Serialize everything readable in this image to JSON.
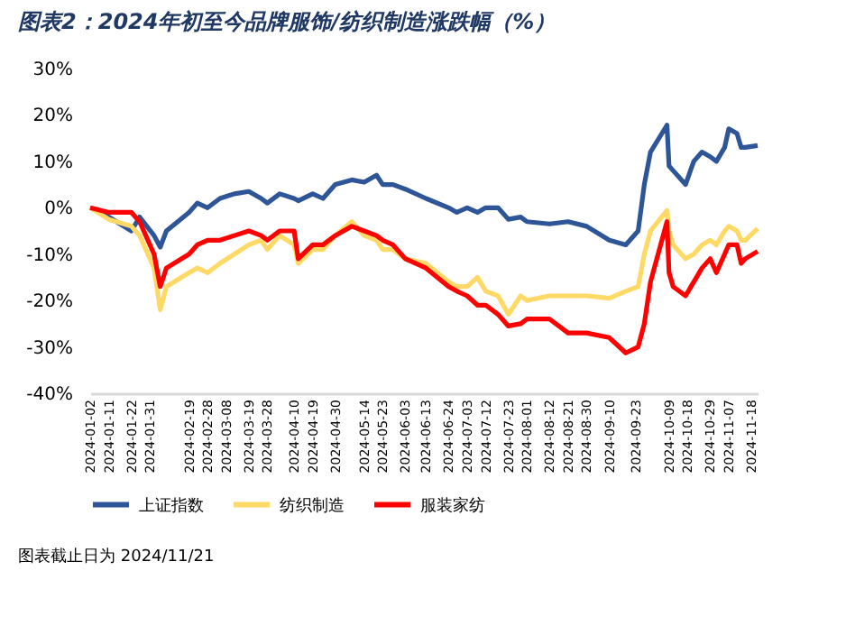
{
  "chart_data": {
    "type": "line",
    "title": "图表2：2024年初至今品牌服饰/纺织制造涨跌幅（%）",
    "x": [
      "2024-01-02",
      "2024-01-11",
      "2024-01-22",
      "2024-01-26",
      "2024-02-02",
      "2024-02-05",
      "2024-02-08",
      "2024-02-19",
      "2024-02-23",
      "2024-02-28",
      "2024-03-05",
      "2024-03-12",
      "2024-03-19",
      "2024-03-25",
      "2024-03-28",
      "2024-04-03",
      "2024-04-10",
      "2024-04-12",
      "2024-04-19",
      "2024-04-24",
      "2024-04-30",
      "2024-05-08",
      "2024-05-14",
      "2024-05-20",
      "2024-05-23",
      "2024-05-28",
      "2024-06-03",
      "2024-06-13",
      "2024-06-24",
      "2024-06-28",
      "2024-07-03",
      "2024-07-08",
      "2024-07-12",
      "2024-07-18",
      "2024-07-23",
      "2024-07-29",
      "2024-08-01",
      "2024-08-12",
      "2024-08-21",
      "2024-08-30",
      "2024-09-10",
      "2024-09-18",
      "2024-09-24",
      "2024-09-27",
      "2024-09-30",
      "2024-10-08",
      "2024-10-09",
      "2024-10-11",
      "2024-10-17",
      "2024-10-21",
      "2024-10-25",
      "2024-10-29",
      "2024-11-01",
      "2024-11-05",
      "2024-11-07",
      "2024-11-11",
      "2024-11-13",
      "2024-11-15",
      "2024-11-21"
    ],
    "series": [
      {
        "name": "上证指数",
        "color": "#2e5597",
        "values": [
          0,
          -2,
          -5,
          -2,
          -6,
          -8.5,
          -5,
          -1,
          1,
          0,
          2,
          3,
          3.5,
          2,
          1,
          3,
          2,
          1.5,
          3,
          2,
          5,
          6,
          5.5,
          7,
          5,
          5,
          4,
          2,
          0,
          -1,
          0,
          -1,
          0,
          0,
          -2.5,
          -2,
          -3,
          -3.5,
          -3,
          -4,
          -7,
          -8,
          -5,
          5,
          12,
          17.8,
          9,
          8,
          5,
          10,
          12,
          11,
          10,
          13,
          17,
          16,
          13,
          13,
          13.4
        ]
      },
      {
        "name": "纺织制造",
        "color": "#ffd966",
        "values": [
          0,
          -2.5,
          -4,
          -6,
          -13,
          -22,
          -17,
          -14,
          -13,
          -14,
          -12,
          -10,
          -8,
          -7,
          -9,
          -6,
          -8,
          -12,
          -9,
          -9,
          -6,
          -3,
          -6,
          -7,
          -9,
          -9,
          -11,
          -12,
          -16,
          -17,
          -17,
          -15,
          -18,
          -19,
          -23,
          -19,
          -20,
          -19,
          -19,
          -19,
          -19.5,
          -18,
          -17,
          -10,
          -5,
          -0.6,
          -5,
          -8,
          -11,
          -10,
          -8,
          -7,
          -8,
          -5,
          -4,
          -5,
          -7,
          -7,
          -4.5
        ]
      },
      {
        "name": "服装家纺",
        "color": "#ff0000",
        "values": [
          0,
          -1,
          -1,
          -3,
          -10,
          -17,
          -13,
          -10,
          -8,
          -7,
          -7,
          -6,
          -5,
          -6,
          -7,
          -5,
          -5,
          -11,
          -8,
          -8,
          -6,
          -4,
          -5,
          -6,
          -7,
          -8,
          -11,
          -13,
          -17,
          -18,
          -19,
          -21,
          -21,
          -23,
          -25.5,
          -25,
          -24,
          -24,
          -27,
          -27,
          -28,
          -31.3,
          -30,
          -25,
          -16,
          -3,
          -14,
          -17,
          -19,
          -16,
          -13,
          -11,
          -14,
          -10,
          -8,
          -8,
          -12,
          -11,
          -9.4
        ]
      }
    ],
    "xlim": [
      "2024-01-02",
      "2024-11-21"
    ],
    "xticks": [
      "2024-01-02",
      "2024-01-11",
      "2024-01-22",
      "2024-01-31",
      "2024-02-19",
      "2024-02-28",
      "2024-03-08",
      "2024-03-19",
      "2024-03-28",
      "2024-04-10",
      "2024-04-19",
      "2024-04-30",
      "2024-05-14",
      "2024-05-23",
      "2024-06-03",
      "2024-06-13",
      "2024-06-24",
      "2024-07-03",
      "2024-07-12",
      "2024-07-23",
      "2024-08-01",
      "2024-08-12",
      "2024-08-21",
      "2024-08-30",
      "2024-09-10",
      "2024-09-23",
      "2024-10-09",
      "2024-10-18",
      "2024-10-29",
      "2024-11-07",
      "2024-11-18"
    ],
    "ylim": [
      -40,
      30
    ],
    "yticks": [
      {
        "value": -40,
        "label": "-40%"
      },
      {
        "value": -30,
        "label": "-30%"
      },
      {
        "value": -20,
        "label": "-20%"
      },
      {
        "value": -10,
        "label": "-10%"
      },
      {
        "value": 0,
        "label": "0%"
      },
      {
        "value": 10,
        "label": "10%"
      },
      {
        "value": 20,
        "label": "20%"
      },
      {
        "value": 30,
        "label": "30%"
      }
    ],
    "grid": false,
    "legend": "bottom",
    "marker": "none",
    "line_style": "solid",
    "annotations": [
      "图表截止日为 2024/11/21"
    ]
  }
}
